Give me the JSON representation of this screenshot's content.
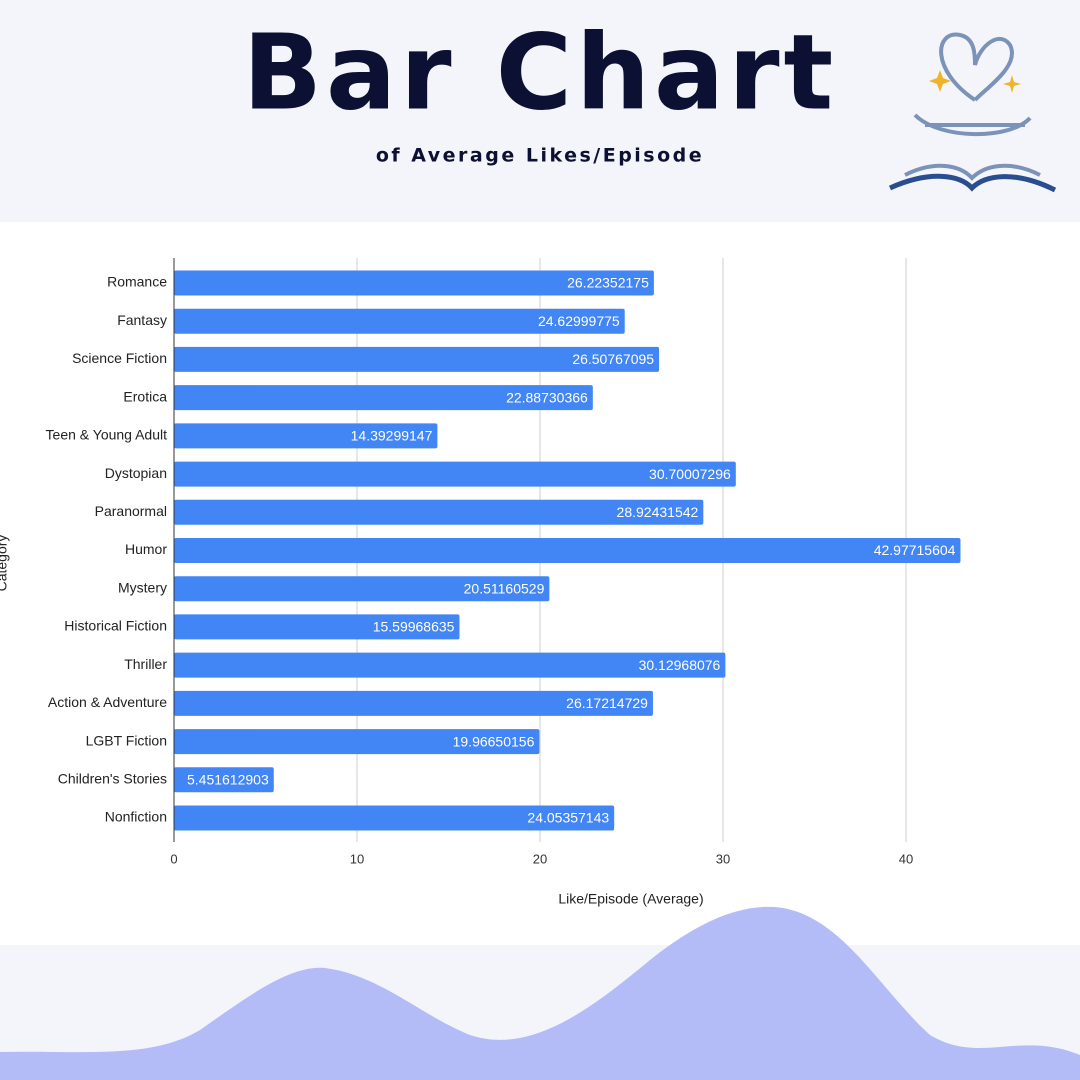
{
  "chart_data": {
    "type": "bar",
    "orientation": "horizontal",
    "title": "Bar Chart",
    "subtitle": "of Average Likes/Episode",
    "x_label": "Like/Episode (Average)",
    "y_label": "Category",
    "categories": [
      "Romance",
      "Fantasy",
      "Science Fiction",
      "Erotica",
      "Teen & Young Adult",
      "Dystopian",
      "Paranormal",
      "Humor",
      "Mystery",
      "Historical Fiction",
      "Thriller",
      "Action & Adventure",
      "LGBT Fiction",
      "Children's Stories",
      "Nonfiction"
    ],
    "values": [
      26.22352175,
      24.62999775,
      26.50767095,
      22.88730366,
      14.39299147,
      30.70007296,
      28.92431542,
      42.97715604,
      20.51160529,
      15.59968635,
      30.12968076,
      26.17214729,
      19.96650156,
      5.451612903,
      24.05357143
    ],
    "color": "#4285f4",
    "xlim": [
      0,
      45
    ],
    "xticks": [
      0,
      10,
      20,
      30,
      40
    ],
    "grid": true
  }
}
